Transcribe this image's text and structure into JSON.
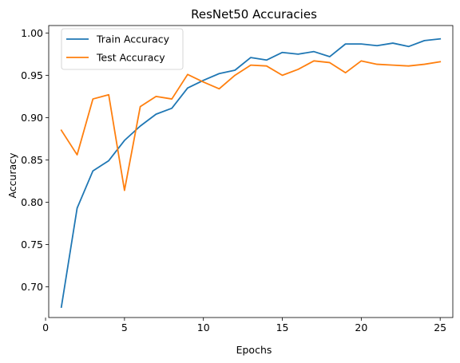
{
  "chart_data": {
    "type": "line",
    "title": "ResNet50 Accuracies",
    "xlabel": "Epochs",
    "ylabel": "Accuracy",
    "xlim": [
      0.2,
      25.8
    ],
    "ylim": [
      0.6637,
      1.0088
    ],
    "xticks": [
      0,
      5,
      10,
      15,
      20,
      25
    ],
    "yticks": [
      0.7,
      0.75,
      0.8,
      0.85,
      0.9,
      0.95,
      1.0
    ],
    "ytick_labels": [
      "0.70",
      "0.75",
      "0.80",
      "0.85",
      "0.90",
      "0.95",
      "1.00"
    ],
    "grid": false,
    "legend_position": "upper-left",
    "x": [
      1,
      2,
      3,
      4,
      5,
      6,
      7,
      8,
      9,
      10,
      11,
      12,
      13,
      14,
      15,
      16,
      17,
      18,
      19,
      20,
      21,
      22,
      23,
      24,
      25
    ],
    "series": [
      {
        "name": "Train Accuracy",
        "color": "#1f77b4",
        "values": [
          0.676,
          0.793,
          0.837,
          0.849,
          0.873,
          0.89,
          0.904,
          0.911,
          0.935,
          0.944,
          0.952,
          0.956,
          0.971,
          0.968,
          0.977,
          0.975,
          0.978,
          0.972,
          0.987,
          0.987,
          0.985,
          0.988,
          0.984,
          0.991,
          0.993
        ]
      },
      {
        "name": "Test Accuracy",
        "color": "#ff7f0e",
        "values": [
          0.885,
          0.856,
          0.922,
          0.927,
          0.814,
          0.913,
          0.925,
          0.922,
          0.951,
          0.942,
          0.934,
          0.95,
          0.962,
          0.961,
          0.95,
          0.957,
          0.967,
          0.965,
          0.953,
          0.967,
          0.963,
          0.962,
          0.961,
          0.963,
          0.966
        ]
      }
    ]
  }
}
